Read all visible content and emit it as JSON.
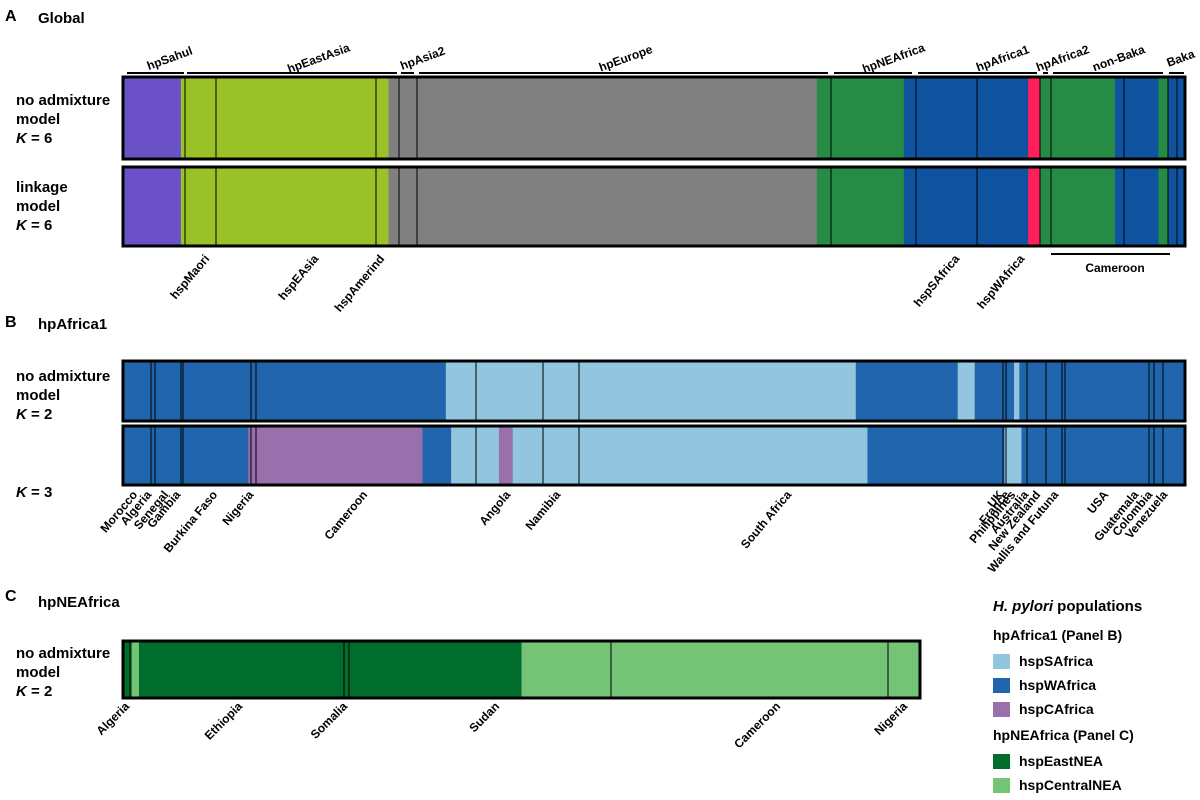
{
  "chart_data": [
    {
      "panel": "A",
      "title": "Global",
      "type": "bar",
      "top_groups": [
        "hpSahul",
        "hpEastAsia",
        "hpAsia2",
        "hpEurope",
        "hpNEAfrica",
        "hpAfrica1",
        "hpAfrica2",
        "non-Baka",
        "Baka"
      ],
      "subpop_labels": [
        "hspMaori",
        "hspEAsia",
        "hspAmerind",
        "hspSAfrica",
        "hspWAfrica"
      ],
      "bottom_group": "Cameroon",
      "rows": [
        {
          "label": [
            "no admixture",
            "model",
            "K = 6"
          ],
          "segments": [
            {
              "color": "#6a51c8",
              "value": 4.8
            },
            {
              "color": "#9ac228",
              "value": 17.2
            },
            {
              "color": "#808080",
              "value": 35.5
            },
            {
              "color": "#258b45",
              "value": 7.2
            },
            {
              "color": "#0f52a0",
              "value": 10.3
            },
            {
              "color": "#ff1f5a",
              "value": 1.0
            },
            {
              "color": "#258b45",
              "value": 6.2
            },
            {
              "color": "#0f52a0",
              "value": 3.6
            },
            {
              "color": "#258b45",
              "value": 0.8
            },
            {
              "color": "#0f52a0",
              "value": 1.4
            }
          ]
        },
        {
          "label": [
            "linkage",
            "model",
            "K = 6"
          ],
          "segments": [
            {
              "color": "#6a51c8",
              "value": 4.8
            },
            {
              "color": "#9ac228",
              "value": 17.2
            },
            {
              "color": "#808080",
              "value": 35.5
            },
            {
              "color": "#258b45",
              "value": 7.2
            },
            {
              "color": "#0f52a0",
              "value": 10.3
            },
            {
              "color": "#ff1f5a",
              "value": 1.0
            },
            {
              "color": "#258b45",
              "value": 6.2
            },
            {
              "color": "#0f52a0",
              "value": 3.6
            },
            {
              "color": "#258b45",
              "value": 0.8
            },
            {
              "color": "#0f52a0",
              "value": 1.4
            }
          ]
        }
      ]
    },
    {
      "panel": "B",
      "title": "hpAfrica1",
      "type": "bar",
      "countries": [
        "Morocco",
        "Algeria",
        "Senegal",
        "Gambia",
        "Burkina Faso",
        "Nigeria",
        "Cameroon",
        "Angola",
        "Namibia",
        "South Africa",
        "UK",
        "France",
        "Philippines",
        "Australia",
        "New Zealand",
        "Wallis and Futuna",
        "USA",
        "Guatemala",
        "Colombia",
        "Venezuela"
      ],
      "rows": [
        {
          "label": [
            "no admixture",
            "model",
            "K = 2"
          ],
          "segments": [
            {
              "color": "#2166ac",
              "value": 30.4
            },
            {
              "color": "#92c5de",
              "value": 38.6
            },
            {
              "color": "#2166ac",
              "value": 9.6
            },
            {
              "color": "#92c5de",
              "value": 1.6
            },
            {
              "color": "#2166ac",
              "value": 3.7
            },
            {
              "color": "#92c5de",
              "value": 0.5
            },
            {
              "color": "#2166ac",
              "value": 15.6
            }
          ]
        },
        {
          "label": [
            "",
            "",
            "K = 3"
          ],
          "segments": [
            {
              "color": "#2166ac",
              "value": 11.8
            },
            {
              "color": "#9970ab",
              "value": 16.4
            },
            {
              "color": "#2166ac",
              "value": 2.7
            },
            {
              "color": "#92c5de",
              "value": 4.5
            },
            {
              "color": "#9970ab",
              "value": 1.3
            },
            {
              "color": "#92c5de",
              "value": 33.4
            },
            {
              "color": "#2166ac",
              "value": 12.9
            },
            {
              "color": "#92c5de",
              "value": 1.6
            },
            {
              "color": "#2166ac",
              "value": 15.4
            }
          ]
        }
      ]
    },
    {
      "panel": "C",
      "title": "hpNEAfrica",
      "type": "bar",
      "countries": [
        "Algeria",
        "Ethiopia",
        "Somalia",
        "Sudan",
        "Cameroon",
        "Nigeria"
      ],
      "rows": [
        {
          "label": [
            "no admixture",
            "model",
            "K = 2"
          ],
          "segments": [
            {
              "color": "#006d2c",
              "value": 1.1
            },
            {
              "color": "#74c476",
              "value": 0.9
            },
            {
              "color": "#006d2c",
              "value": 48.0
            },
            {
              "color": "#74c476",
              "value": 50.0
            }
          ]
        }
      ]
    }
  ],
  "legend": {
    "title_italic": "H. pylori",
    "title_rest": " populations",
    "groups": [
      {
        "title": "hpAfrica1 (Panel B)",
        "items": [
          {
            "label": "hspSAfrica",
            "color": "#92c5de"
          },
          {
            "label": "hspWAfrica",
            "color": "#2166ac"
          },
          {
            "label": "hspCAfrica",
            "color": "#9970ab"
          }
        ]
      },
      {
        "title": "hpNEAfrica (Panel C)",
        "items": [
          {
            "label": "hspEastNEA",
            "color": "#006d2c"
          },
          {
            "label": "hspCentralNEA",
            "color": "#74c476"
          }
        ]
      }
    ]
  }
}
